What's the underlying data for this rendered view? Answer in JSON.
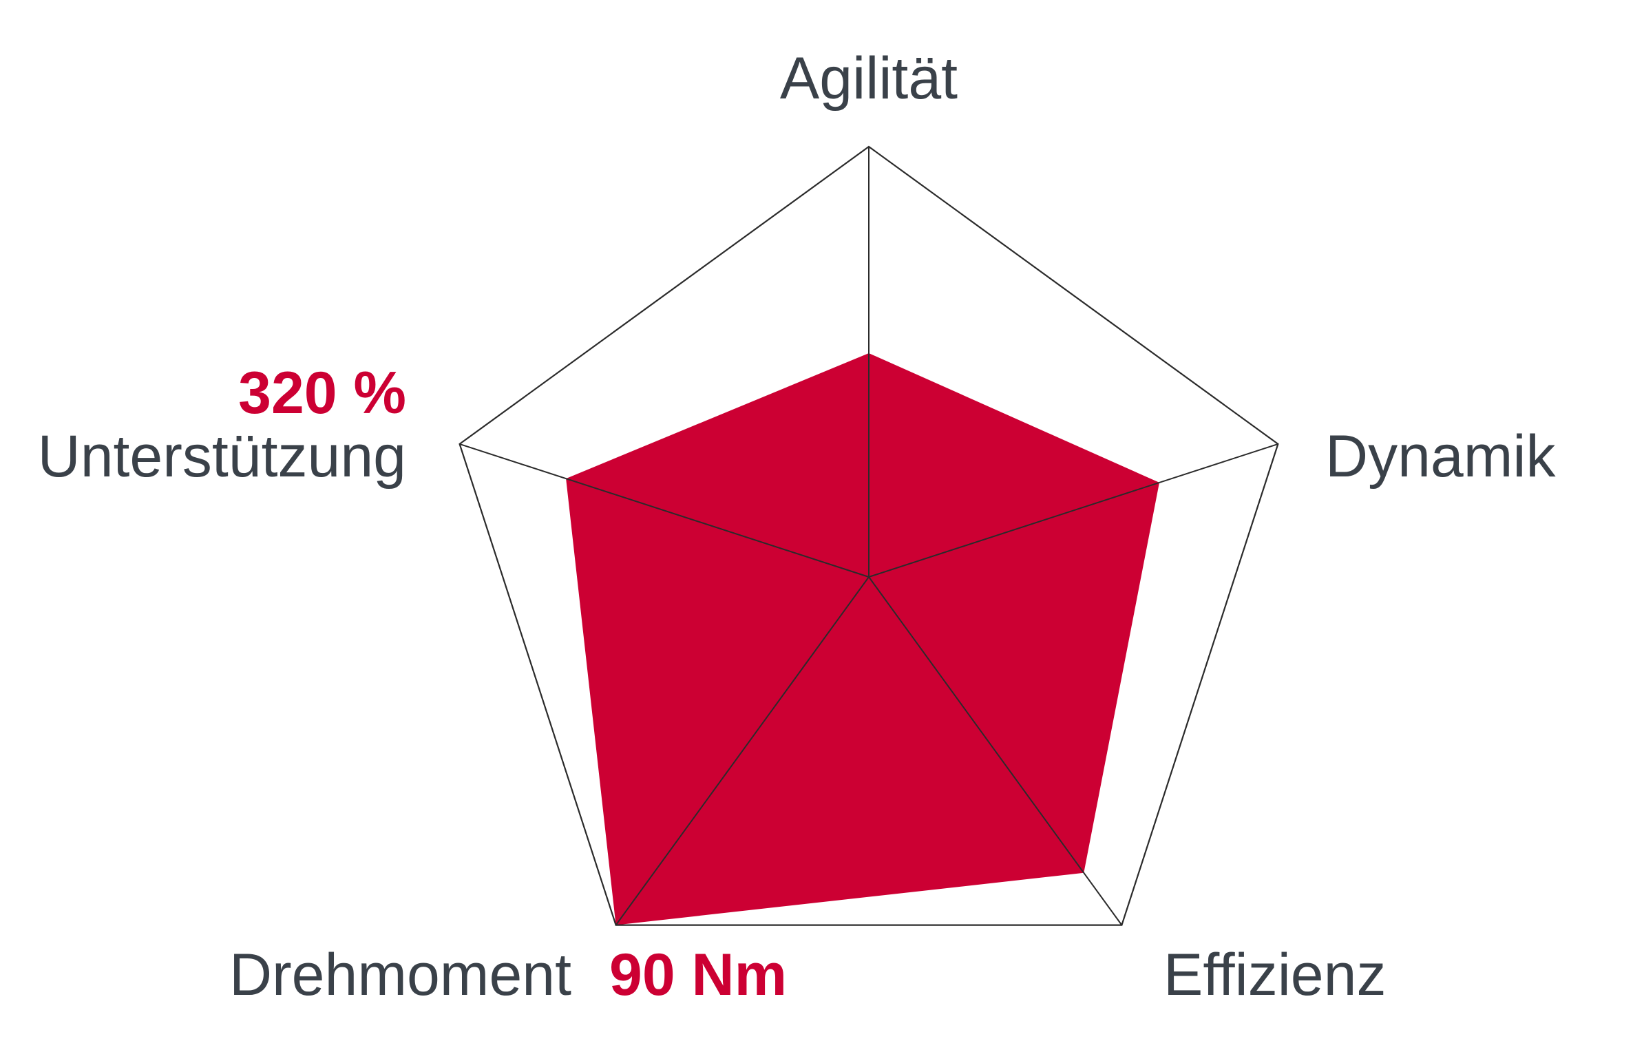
{
  "chart_data": {
    "type": "radar",
    "axes": [
      "Agilität",
      "Dynamik",
      "Effizienz",
      "Drehmoment",
      "Unterstützung"
    ],
    "values": [
      0.52,
      0.71,
      0.85,
      1.0,
      0.74
    ],
    "range": [
      0,
      1
    ],
    "grid": false,
    "annotations": {
      "support_value": "320 %",
      "torque_value": "90 Nm"
    },
    "colors": {
      "fill": "#cc0033",
      "grid": "#2b2b2b",
      "label": "#3a4149",
      "value": "#cc0033"
    }
  }
}
